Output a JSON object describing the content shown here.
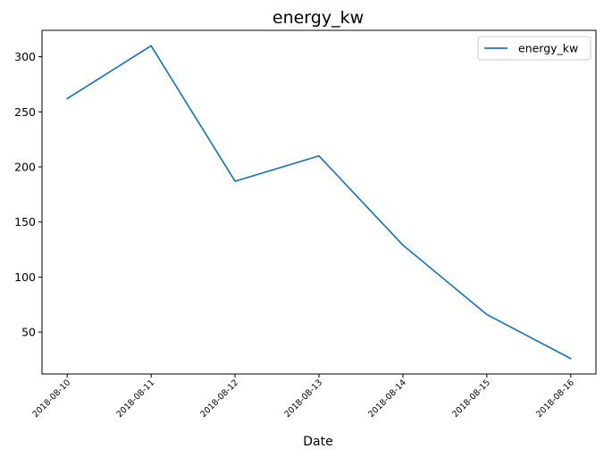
{
  "chart_data": {
    "type": "line",
    "title": "energy_kw",
    "xlabel": "Date",
    "ylabel": "",
    "x": [
      "2018-08-10",
      "2018-08-11",
      "2018-08-12",
      "2018-08-13",
      "2018-08-14",
      "2018-08-15",
      "2018-08-16"
    ],
    "series": [
      {
        "name": "energy_kw",
        "values": [
          262,
          310,
          187,
          210,
          129,
          66,
          26
        ],
        "color": "#1f77b4"
      }
    ],
    "ylim": [
      12,
      324
    ],
    "yticks": [
      50,
      100,
      150,
      200,
      250,
      300
    ],
    "grid": false,
    "legend": "top-right"
  }
}
